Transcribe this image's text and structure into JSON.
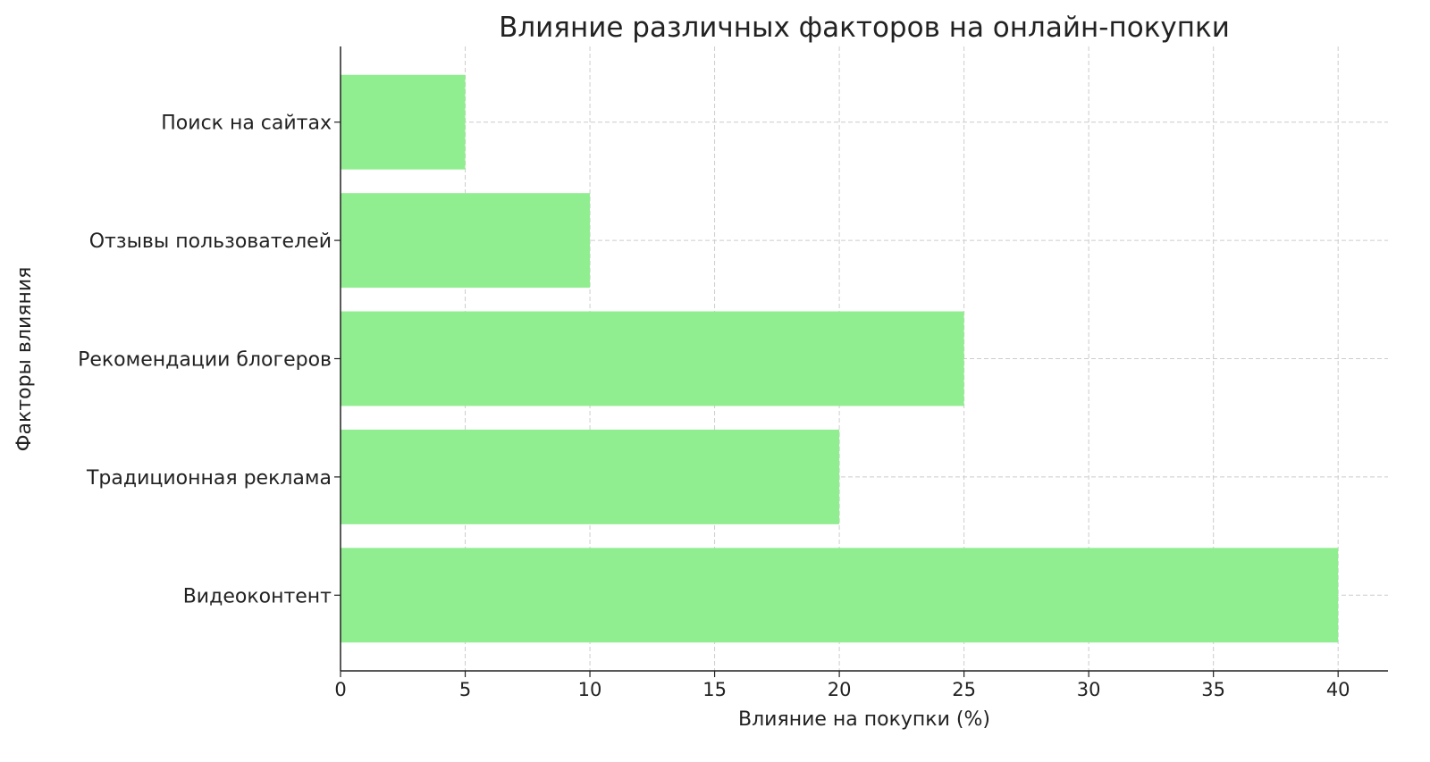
{
  "chart_data": {
    "type": "bar",
    "orientation": "horizontal",
    "title": "Влияние различных факторов на онлайн-покупки",
    "xlabel": "Влияние на покупки (%)",
    "ylabel": "Факторы влияния",
    "categories": [
      "Видеоконтент",
      "Традиционная реклама",
      "Рекомендации блогеров",
      "Отзывы пользователей",
      "Поиск на сайтах"
    ],
    "values": [
      40,
      20,
      25,
      10,
      5
    ],
    "xlim": [
      0,
      42
    ],
    "xticks": [
      0,
      5,
      10,
      15,
      20,
      25,
      30,
      35,
      40
    ],
    "grid": true,
    "bar_color": "#90EE90",
    "grid_color": "#cccccc"
  }
}
